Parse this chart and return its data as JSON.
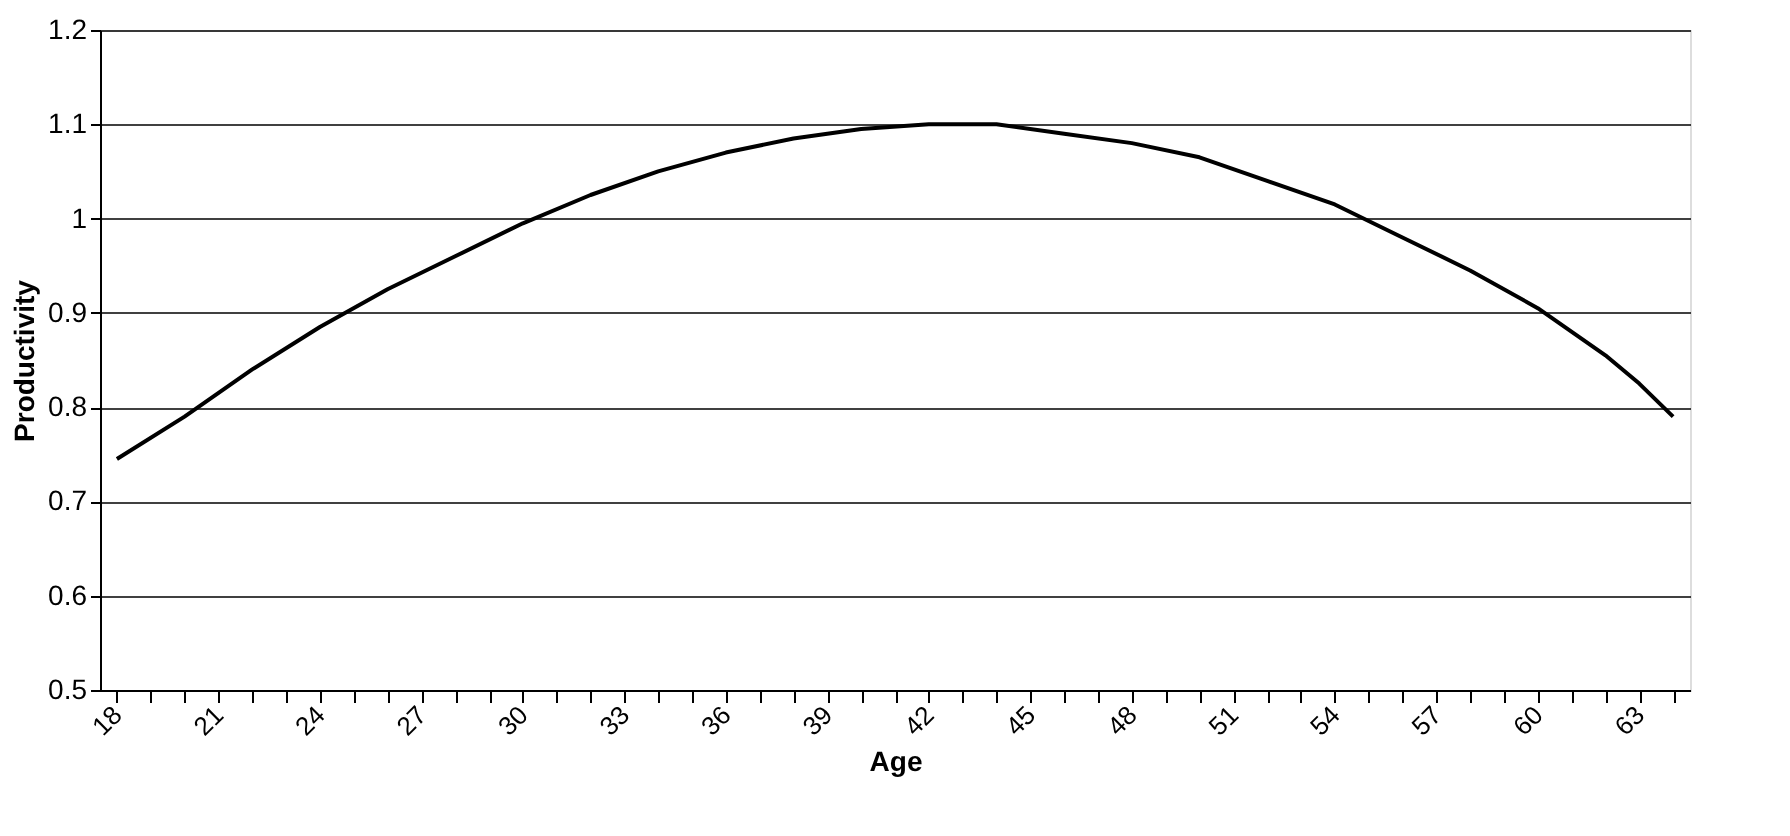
{
  "chart_data": {
    "type": "line",
    "xlabel": "Age",
    "ylabel": "Productivity",
    "x": [
      18,
      20,
      22,
      24,
      26,
      28,
      30,
      32,
      34,
      36,
      38,
      40,
      42,
      44,
      46,
      48,
      50,
      52,
      54,
      56,
      58,
      60,
      62,
      63,
      64
    ],
    "series": [
      {
        "color": "#000000",
        "values": [
          0.745,
          0.79,
          0.84,
          0.885,
          0.925,
          0.96,
          0.995,
          1.025,
          1.05,
          1.07,
          1.085,
          1.095,
          1.1,
          1.1,
          1.09,
          1.08,
          1.065,
          1.04,
          1.015,
          0.98,
          0.945,
          0.905,
          0.855,
          0.825,
          0.79
        ]
      }
    ],
    "xlim": [
      17.5,
      64.5
    ],
    "xticks": [
      18,
      {
        "value": 19,
        "label": null
      },
      {
        "value": 20,
        "label": null
      },
      21,
      {
        "value": 22,
        "label": null
      },
      {
        "value": 23,
        "label": null
      },
      24,
      {
        "value": 25,
        "label": null
      },
      {
        "value": 26,
        "label": null
      },
      27,
      {
        "value": 28,
        "label": null
      },
      {
        "value": 29,
        "label": null
      },
      30,
      {
        "value": 31,
        "label": null
      },
      {
        "value": 32,
        "label": null
      },
      33,
      {
        "value": 34,
        "label": null
      },
      {
        "value": 35,
        "label": null
      },
      36,
      {
        "value": 37,
        "label": null
      },
      {
        "value": 38,
        "label": null
      },
      39,
      {
        "value": 40,
        "label": null
      },
      {
        "value": 41,
        "label": null
      },
      42,
      {
        "value": 43,
        "label": null
      },
      {
        "value": 44,
        "label": null
      },
      45,
      {
        "value": 46,
        "label": null
      },
      {
        "value": 47,
        "label": null
      },
      48,
      {
        "value": 49,
        "label": null
      },
      {
        "value": 50,
        "label": null
      },
      51,
      {
        "value": 52,
        "label": null
      },
      {
        "value": 53,
        "label": null
      },
      54,
      {
        "value": 55,
        "label": null
      },
      {
        "value": 56,
        "label": null
      },
      57,
      {
        "value": 58,
        "label": null
      },
      {
        "value": 59,
        "label": null
      },
      60,
      {
        "value": 61,
        "label": null
      },
      {
        "value": 62,
        "label": null
      },
      63,
      {
        "value": 64,
        "label": null
      }
    ],
    "ylim": [
      0.5,
      1.2
    ],
    "yticks": [
      0.5,
      0.6,
      0.7,
      0.8,
      0.9,
      {
        "value": 1.0,
        "label": "1"
      },
      1.1,
      1.2
    ],
    "grid": "y",
    "marker": "none",
    "line_style": "solid"
  }
}
